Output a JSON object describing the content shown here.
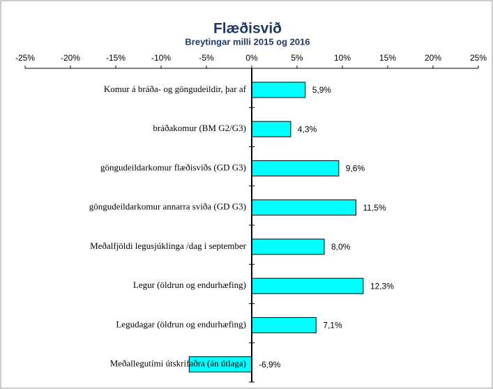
{
  "chart_data": {
    "type": "bar",
    "orientation": "horizontal",
    "title": "Flæðisvið",
    "subtitle": "Breytingar milli 2015 og 2016",
    "categories": [
      "Komur á bráða- og göngudeildir,  þar af",
      "bráðakomur (BM G2/G3)",
      "göngudeildarkomur flæðisviðs (GD G3)",
      "göngudeildarkomur annarra sviða (GD G3)",
      "Meðalfjöldi legusjúklinga /dag í september",
      "Legur (öldrun og endurhæfing)",
      "Legudagar (öldrun og endurhæfing)",
      "Meðallegutími útskrifaðra (án útlaga)"
    ],
    "values": [
      5.9,
      4.3,
      9.6,
      11.5,
      8.0,
      12.3,
      7.1,
      -6.9
    ],
    "value_labels": [
      "5,9%",
      "4,3%",
      "9,6%",
      "11,5%",
      "8,0%",
      "12,3%",
      "7,1%",
      "-6,9%"
    ],
    "color": "#00ffff",
    "xlim": [
      -25,
      25
    ],
    "xticks": [
      {
        "value": -25,
        "label": "-25%"
      },
      {
        "value": -20,
        "label": "-20%"
      },
      {
        "value": -15,
        "label": "-15%"
      },
      {
        "value": -10,
        "label": "-10%"
      },
      {
        "value": -5,
        "label": "-5%"
      },
      {
        "value": 0,
        "label": "0%"
      },
      {
        "value": 5,
        "label": "5%"
      },
      {
        "value": 10,
        "label": "10%"
      },
      {
        "value": 15,
        "label": "15%"
      },
      {
        "value": 20,
        "label": "20%"
      },
      {
        "value": 25,
        "label": "25%"
      }
    ]
  }
}
